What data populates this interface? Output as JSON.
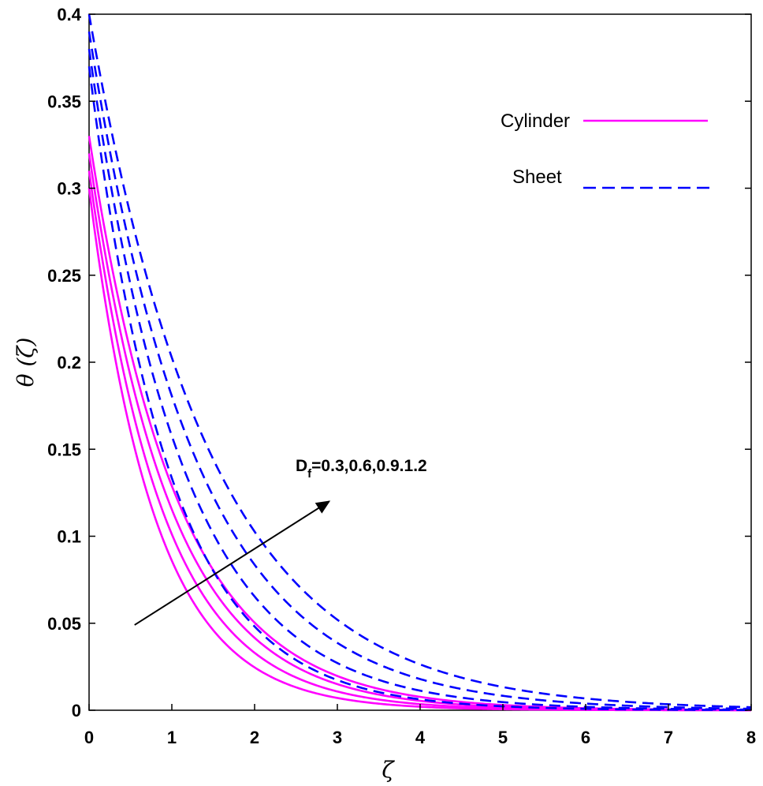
{
  "chart_data": {
    "type": "line",
    "xlabel": "ζ",
    "ylabel": "θ (ζ)",
    "xlim": [
      0,
      8
    ],
    "ylim": [
      0,
      0.4
    ],
    "xticks": [
      "0",
      "1",
      "2",
      "3",
      "4",
      "5",
      "6",
      "7",
      "8"
    ],
    "yticks": [
      "0",
      "0.05",
      "0.1",
      "0.15",
      "0.2",
      "0.25",
      "0.3",
      "0.35",
      "0.4"
    ],
    "grid": false,
    "legend_position": "top-right",
    "legend": [
      {
        "label": "Cylinder",
        "color": "#ff00ff",
        "style": "solid"
      },
      {
        "label": "Sheet",
        "color": "#0000ff",
        "style": "dashed"
      }
    ],
    "annotation": {
      "text_main": "D",
      "text_sub": "f",
      "text_rest": "=0.3,0.6,0.9.1.2",
      "arrow_from": [
        0.55,
        0.049
      ],
      "arrow_to": [
        2.9,
        0.12
      ]
    },
    "series": [
      {
        "group": "Cylinder",
        "color": "#ff00ff",
        "style": "solid",
        "y0": 0.3,
        "decay": 1.25
      },
      {
        "group": "Cylinder",
        "color": "#ff00ff",
        "style": "solid",
        "y0": 0.31,
        "decay": 1.12
      },
      {
        "group": "Cylinder",
        "color": "#ff00ff",
        "style": "solid",
        "y0": 0.32,
        "decay": 1.02
      },
      {
        "group": "Cylinder",
        "color": "#ff00ff",
        "style": "solid",
        "y0": 0.33,
        "decay": 0.94
      },
      {
        "group": "Sheet",
        "color": "#0000ff",
        "style": "dashed",
        "y0": 0.37,
        "decay": 1.02
      },
      {
        "group": "Sheet",
        "color": "#0000ff",
        "style": "dashed",
        "y0": 0.38,
        "decay": 0.88
      },
      {
        "group": "Sheet",
        "color": "#0000ff",
        "style": "dashed",
        "y0": 0.39,
        "decay": 0.77
      },
      {
        "group": "Sheet",
        "color": "#0000ff",
        "style": "dashed",
        "y0": 0.4,
        "decay": 0.68
      }
    ]
  }
}
